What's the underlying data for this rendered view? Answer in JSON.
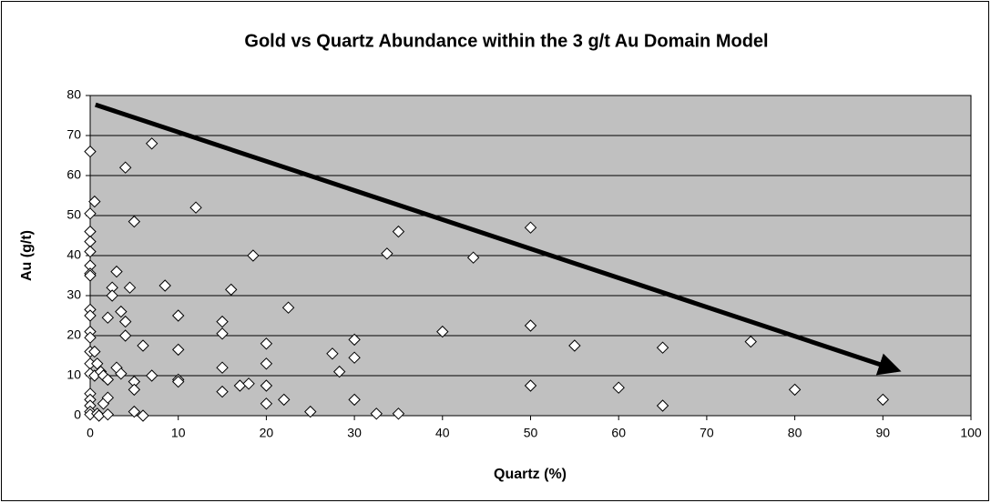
{
  "chart_data": {
    "type": "scatter",
    "title": "Gold vs Quartz Abundance within the 3 g/t Au Domain Model",
    "xlabel": "Quartz (%)",
    "ylabel": "Au (g/t)",
    "x": [
      0,
      0,
      0,
      0,
      0,
      0,
      0,
      0,
      0,
      0,
      0,
      0,
      0,
      0,
      0,
      0,
      0,
      0,
      0,
      0,
      0.5,
      0.5,
      0.8,
      0.5,
      0.8,
      1,
      1.2,
      1.5,
      1.5,
      2,
      2,
      2,
      2,
      2.5,
      2.5,
      3,
      3,
      3.5,
      3.5,
      4,
      4,
      4,
      4.5,
      5,
      5,
      5,
      5,
      6,
      6,
      7,
      7,
      8.5,
      10,
      10,
      10,
      10,
      12,
      15,
      15,
      15,
      15,
      16,
      17,
      18,
      18.5,
      20,
      20,
      20,
      20,
      22,
      22.5,
      25,
      27.5,
      28.3,
      30,
      30,
      30,
      32.5,
      33.7,
      35,
      35,
      40,
      43.5,
      50,
      50,
      50,
      55,
      60,
      65,
      65,
      75,
      80,
      90
    ],
    "values": [
      66,
      50.5,
      46,
      43.5,
      41,
      37.5,
      35.5,
      35,
      26.5,
      25,
      21,
      19.5,
      16,
      13,
      10.5,
      5.5,
      4,
      2.5,
      1,
      0.3,
      53.5,
      16,
      13,
      10,
      0.5,
      0,
      11,
      10,
      3,
      0.3,
      4.5,
      9,
      24.5,
      32,
      30,
      36,
      12,
      26,
      10.5,
      62,
      23.5,
      20,
      32,
      48.5,
      8.5,
      6.5,
      1,
      17.5,
      0,
      68,
      10,
      32.5,
      25,
      16.5,
      9,
      8.5,
      52,
      23.5,
      20.5,
      12,
      6,
      31.5,
      7.5,
      8,
      40,
      18,
      13,
      7.5,
      3,
      4,
      27,
      1,
      15.5,
      11,
      19,
      14.5,
      4,
      0.5,
      40.5,
      46,
      0.5,
      21,
      39.5,
      47,
      22.5,
      7.5,
      17.5,
      7,
      17,
      2.5,
      18.5,
      6.5,
      4
    ],
    "color": "#ffffff",
    "xlim": [
      0,
      100
    ],
    "ylim": [
      0,
      80
    ],
    "xticks": [
      0,
      10,
      20,
      30,
      40,
      50,
      60,
      70,
      80,
      90,
      100
    ],
    "yticks": [
      0,
      10,
      20,
      30,
      40,
      50,
      60,
      70,
      80
    ],
    "grid": true,
    "arrow": {
      "x": [
        0.6,
        91.6
      ],
      "y": [
        77.7,
        11.4
      ]
    }
  }
}
